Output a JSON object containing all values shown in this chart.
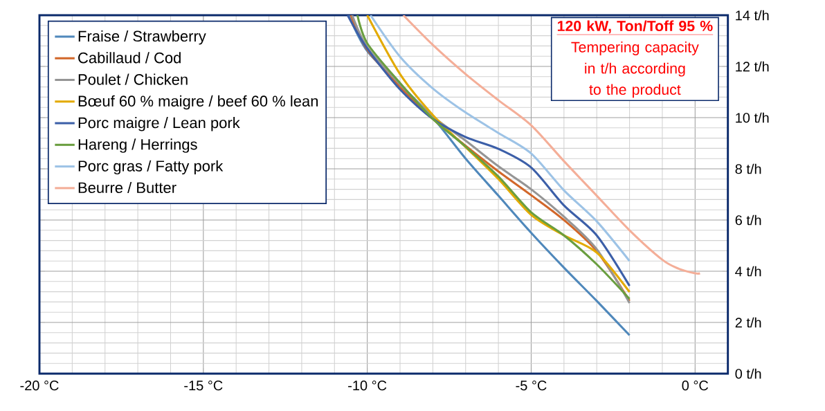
{
  "chart_data": {
    "type": "line",
    "xlim": [
      -20,
      1
    ],
    "ylim": [
      0,
      14
    ],
    "xticks": [
      {
        "value": -20,
        "label": "-20 °C"
      },
      {
        "value": -15,
        "label": "-15 °C"
      },
      {
        "value": -10,
        "label": "-10 °C"
      },
      {
        "value": -5,
        "label": "-5 °C"
      },
      {
        "value": 0,
        "label": "0 °C"
      }
    ],
    "yticks": [
      {
        "value": 0,
        "label": "0 t/h"
      },
      {
        "value": 2,
        "label": "2 t/h"
      },
      {
        "value": 4,
        "label": "4 t/h"
      },
      {
        "value": 6,
        "label": "6 t/h"
      },
      {
        "value": 8,
        "label": "8 t/h"
      },
      {
        "value": 10,
        "label": "10 t/h"
      },
      {
        "value": 12,
        "label": "12 t/h"
      },
      {
        "value": 14,
        "label": "14 t/h"
      }
    ],
    "grid": true,
    "legend": "top left",
    "annotations": [
      "120 kW, Ton/Toff 95 %",
      "Tempering capacity in t/h according to the product"
    ],
    "series": [
      {
        "name": "Fraise / Strawberry",
        "color": "#4f88bb",
        "x": [
          -10.57,
          -10,
          -9,
          -8,
          -7,
          -6,
          -5,
          -4,
          -3,
          -2
        ],
        "values": [
          14,
          12.6,
          11.3,
          10.0,
          8.4,
          6.95,
          5.5,
          4.14,
          2.84,
          1.5
        ]
      },
      {
        "name": "Cabillaud / Cod",
        "color": "#d2672a",
        "x": [
          -10.5,
          -10,
          -9,
          -8,
          -7,
          -6,
          -5,
          -4,
          -3,
          -2
        ],
        "values": [
          14,
          12.65,
          11.2,
          9.95,
          8.9,
          7.9,
          6.97,
          6.0,
          4.78,
          2.84
        ]
      },
      {
        "name": "Poulet / Chicken",
        "color": "#959595",
        "x": [
          -10.46,
          -10,
          -9,
          -8,
          -7,
          -6,
          -5,
          -4,
          -3,
          -2
        ],
        "values": [
          14,
          12.75,
          11.3,
          10.05,
          9.1,
          8.1,
          7.2,
          6.13,
          4.86,
          2.76
        ]
      },
      {
        "name": "Bœuf 60 % maigre / beef 60 % lean",
        "color": "#e3aa00",
        "x": [
          -10,
          -9,
          -8,
          -7,
          -6,
          -5,
          -4,
          -3,
          -2
        ],
        "values": [
          14,
          11.7,
          10.1,
          8.85,
          7.6,
          6.2,
          5.4,
          4.73,
          3.19
        ]
      },
      {
        "name": "Porc maigre / Lean pork",
        "color": "#3c5fa8",
        "x": [
          -10.6,
          -10,
          -9,
          -8,
          -7,
          -6,
          -5,
          -4,
          -3,
          -2
        ],
        "values": [
          14,
          12.7,
          11.1,
          9.95,
          9.24,
          8.78,
          8.05,
          6.57,
          5.4,
          3.43
        ]
      },
      {
        "name": "Hareng / Herrings",
        "color": "#6a9e3f",
        "x": [
          -10.3,
          -10,
          -9,
          -8,
          -7,
          -6,
          -5,
          -4,
          -3,
          -2
        ],
        "values": [
          14,
          12.9,
          11.35,
          9.95,
          8.87,
          7.7,
          6.3,
          5.4,
          4.27,
          2.92
        ]
      },
      {
        "name": "Porc gras / Fatty pork",
        "color": "#9dc3e6",
        "x": [
          -9.9,
          -9,
          -8,
          -7,
          -6,
          -5,
          -4,
          -3,
          -2
        ],
        "values": [
          14,
          12.38,
          11.14,
          10.2,
          9.4,
          8.6,
          7.16,
          5.95,
          4.4
        ]
      },
      {
        "name": "Beurre / Butter",
        "color": "#f4ae98",
        "x": [
          -8.9,
          -8,
          -7,
          -6,
          -5,
          -4,
          -3,
          -2,
          -1,
          -0.5,
          0,
          0.15
        ],
        "values": [
          14,
          12.84,
          11.7,
          10.68,
          9.7,
          8.3,
          6.95,
          5.6,
          4.45,
          4.1,
          3.92,
          3.92
        ]
      }
    ]
  }
}
